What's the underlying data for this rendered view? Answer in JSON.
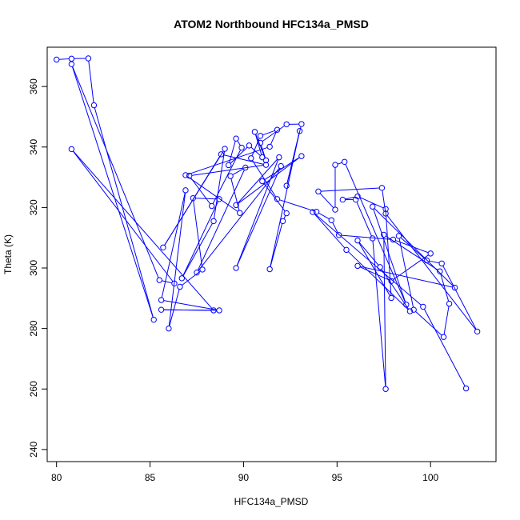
{
  "chart_data": {
    "type": "line",
    "title": "ATOM2 Northbound HFC134a_PMSD",
    "xlabel": "HFC134a_PMSD",
    "ylabel": "Theta (K)",
    "xlim": [
      79.5,
      103.5
    ],
    "ylim": [
      236,
      373
    ],
    "xticks": [
      80,
      85,
      90,
      95,
      100
    ],
    "yticks": [
      240,
      260,
      280,
      300,
      320,
      340,
      360
    ],
    "grid": false,
    "legend": "none",
    "series": [
      {
        "color": "#0000ff",
        "marker": "open-circle",
        "points": [
          [
            80.0,
            368.9
          ],
          [
            80.8,
            369.2
          ],
          [
            81.7,
            369.3
          ],
          [
            82.0,
            353.8
          ],
          [
            85.2,
            282.9
          ],
          [
            80.8,
            367.4
          ],
          [
            85.5,
            296.0
          ],
          [
            86.3,
            294.9
          ],
          [
            80.8,
            339.3
          ],
          [
            88.4,
            286.0
          ],
          [
            85.6,
            286.2
          ],
          [
            88.7,
            286.0
          ],
          [
            85.6,
            289.4
          ],
          [
            86.9,
            325.7
          ],
          [
            86.0,
            280.0
          ],
          [
            86.6,
            293.8
          ],
          [
            87.8,
            299.5
          ],
          [
            87.3,
            323.1
          ],
          [
            88.7,
            322.8
          ],
          [
            86.7,
            296.6
          ],
          [
            88.4,
            315.5
          ],
          [
            89.0,
            339.4
          ],
          [
            85.7,
            306.8
          ],
          [
            88.8,
            337.6
          ],
          [
            91.2,
            334.1
          ],
          [
            87.1,
            330.5
          ],
          [
            88.3,
            320.5
          ],
          [
            89.9,
            339.8
          ],
          [
            89.6,
            342.8
          ],
          [
            89.2,
            334.0
          ],
          [
            90.3,
            340.5
          ],
          [
            91.0,
            336.6
          ],
          [
            90.6,
            345.0
          ],
          [
            91.2,
            335.6
          ],
          [
            90.9,
            341.4
          ],
          [
            92.3,
            347.5
          ],
          [
            93.1,
            347.6
          ],
          [
            92.3,
            327.2
          ],
          [
            93.0,
            345.3
          ],
          [
            91.4,
            299.6
          ],
          [
            92.1,
            315.5
          ],
          [
            92.3,
            318.1
          ],
          [
            91.0,
            328.7
          ],
          [
            93.1,
            337.0
          ],
          [
            89.6,
            320.8
          ],
          [
            91.9,
            336.6
          ],
          [
            89.6,
            300.0
          ],
          [
            92.0,
            333.7
          ],
          [
            87.5,
            298.5
          ],
          [
            90.1,
            333.2
          ],
          [
            89.3,
            330.4
          ],
          [
            89.8,
            318.2
          ],
          [
            86.9,
            330.7
          ],
          [
            91.4,
            340.1
          ],
          [
            91.8,
            345.7
          ],
          [
            90.9,
            343.7
          ],
          [
            90.4,
            336.3
          ],
          [
            91.8,
            322.8
          ],
          [
            93.9,
            318.6
          ],
          [
            94.7,
            315.8
          ],
          [
            95.1,
            310.9
          ],
          [
            98.0,
            309.4
          ],
          [
            100.0,
            304.8
          ],
          [
            97.9,
            295.7
          ],
          [
            96.1,
            300.7
          ],
          [
            101.3,
            293.5
          ],
          [
            96.9,
            320.3
          ],
          [
            98.7,
            287.9
          ],
          [
            95.4,
            335.1
          ],
          [
            94.9,
            334.1
          ],
          [
            94.9,
            319.3
          ],
          [
            94.0,
            325.3
          ],
          [
            97.4,
            326.5
          ],
          [
            97.6,
            318.0
          ],
          [
            102.5,
            279.0
          ],
          [
            100.6,
            301.5
          ],
          [
            99.8,
            302.5
          ],
          [
            98.3,
            310.6
          ],
          [
            99.1,
            286.2
          ],
          [
            100.7,
            277.2
          ],
          [
            101.0,
            288.2
          ],
          [
            100.5,
            298.9
          ],
          [
            97.5,
            311.0
          ],
          [
            97.6,
            260.0
          ],
          [
            96.9,
            309.8
          ],
          [
            96.0,
            322.6
          ],
          [
            95.3,
            322.6
          ],
          [
            96.1,
            323.7
          ],
          [
            97.6,
            319.5
          ],
          [
            97.9,
            290.1
          ],
          [
            96.1,
            309.1
          ],
          [
            97.3,
            300.3
          ],
          [
            98.9,
            285.7
          ],
          [
            95.5,
            306.0
          ],
          [
            93.7,
            318.5
          ],
          [
            99.6,
            287.2
          ],
          [
            101.9,
            260.2
          ]
        ]
      }
    ]
  }
}
